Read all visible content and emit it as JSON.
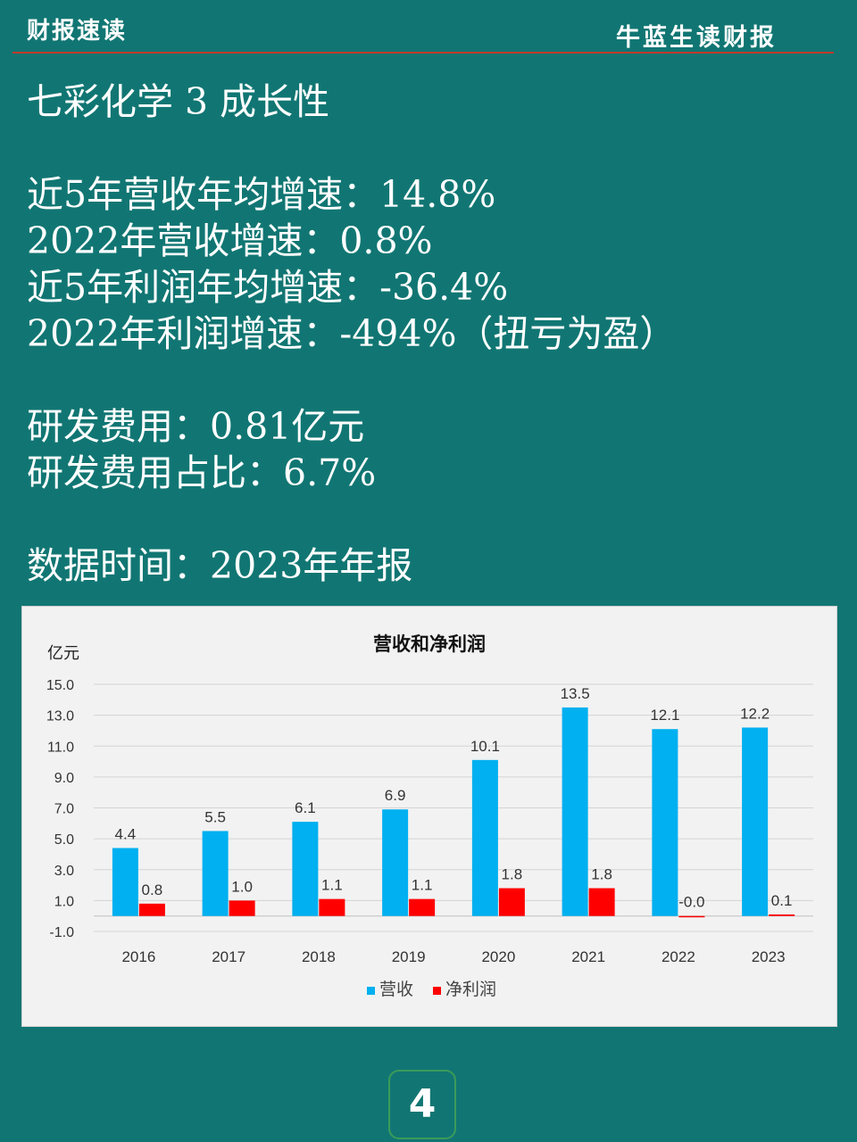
{
  "header": {
    "left": "财报速读",
    "right": "牛蓝生读财报"
  },
  "content": {
    "title": "七彩化学 3 成长性",
    "growth_lines": [
      "近5年营收年均增速：14.8%",
      "2022年营收增速：0.8%",
      "近5年利润年均增速：-36.4%",
      "2022年利润增速：-494%（扭亏为盈）"
    ],
    "rd_lines": [
      "研发费用：0.81亿元",
      "研发费用占比：6.7%"
    ],
    "data_time": "数据时间：2023年年报"
  },
  "page_number": "4",
  "chart_data": {
    "type": "bar",
    "title": "营收和净利润",
    "ylabel": "亿元",
    "ylim": [
      -1.0,
      15.0
    ],
    "yticks": [
      "15.0",
      "13.0",
      "11.0",
      "9.0",
      "7.0",
      "5.0",
      "3.0",
      "1.0",
      "-1.0"
    ],
    "ytick_values": [
      15,
      13,
      11,
      9,
      7,
      5,
      3,
      1,
      -1
    ],
    "categories": [
      "2016",
      "2017",
      "2018",
      "2019",
      "2020",
      "2021",
      "2022",
      "2023"
    ],
    "series": [
      {
        "name": "营收",
        "color": "#00b0f0",
        "values": [
          4.4,
          5.5,
          6.1,
          6.9,
          10.1,
          13.5,
          12.1,
          12.2
        ],
        "labels": [
          "4.4",
          "5.5",
          "6.1",
          "6.9",
          "10.1",
          "13.5",
          "12.1",
          "12.2"
        ]
      },
      {
        "name": "净利润",
        "color": "#ff0000",
        "values": [
          0.8,
          1.0,
          1.1,
          1.1,
          1.8,
          1.8,
          -0.05,
          0.1
        ],
        "labels": [
          "0.8",
          "1.0",
          "1.1",
          "1.1",
          "1.8",
          "1.8",
          "-0.0",
          "0.1"
        ]
      }
    ],
    "grid": true,
    "legend": "bottom"
  }
}
